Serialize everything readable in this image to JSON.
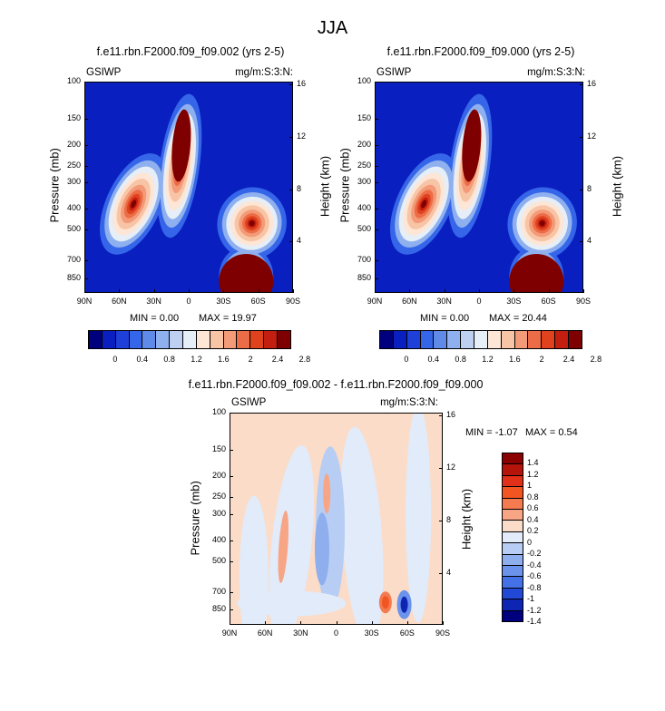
{
  "figure_title": "JJA",
  "chart_data": [
    {
      "type": "heatmap",
      "title": "f.e11.rbn.F2000.f09_f09.002 (yrs 2-5)",
      "left_label": "GSIWP",
      "right_label": "mg/m:S:3:N:",
      "xlabel": "",
      "ylabel": "Pressure (mb)",
      "ylabel_right": "Height (km)",
      "x_ticks": [
        "90N",
        "60N",
        "30N",
        "0",
        "30S",
        "60S",
        "90S"
      ],
      "y_ticks": [
        "100",
        "150",
        "200",
        "250",
        "300",
        "400",
        "500",
        "700",
        "850"
      ],
      "y_right_ticks": [
        "16",
        "12",
        "8",
        "4"
      ],
      "min": 0.0,
      "max": 19.97,
      "min_text": "MIN =  0.00",
      "max_text": "MAX = 19.97",
      "colorbar_ticks": [
        "0",
        "0.4",
        "0.8",
        "1.2",
        "1.6",
        "2",
        "2.4",
        "2.8"
      ],
      "features": [
        {
          "lat": 48,
          "p": 380,
          "value": 3.0
        },
        {
          "lat": 8,
          "p": 250,
          "value": 3.2
        },
        {
          "lat": -50,
          "p": 780,
          "value": 3.2
        },
        {
          "lat": -55,
          "p": 470,
          "value": 2.4
        }
      ]
    },
    {
      "type": "heatmap",
      "title": "f.e11.rbn.F2000.f09_f09.000 (yrs 2-5)",
      "left_label": "GSIWP",
      "right_label": "mg/m:S:3:N:",
      "xlabel": "",
      "ylabel": "Pressure (mb)",
      "ylabel_right": "Height (km)",
      "x_ticks": [
        "90N",
        "60N",
        "30N",
        "0",
        "30S",
        "60S",
        "90S"
      ],
      "y_ticks": [
        "100",
        "150",
        "200",
        "250",
        "300",
        "400",
        "500",
        "700",
        "850"
      ],
      "y_right_ticks": [
        "16",
        "12",
        "8",
        "4"
      ],
      "min": 0.0,
      "max": 20.44,
      "min_text": "MIN =  0.00",
      "max_text": "MAX = 20.44",
      "colorbar_ticks": [
        "0",
        "0.4",
        "0.8",
        "1.2",
        "1.6",
        "2",
        "2.4",
        "2.8"
      ],
      "features": [
        {
          "lat": 48,
          "p": 380,
          "value": 3.0
        },
        {
          "lat": 8,
          "p": 250,
          "value": 3.2
        },
        {
          "lat": -50,
          "p": 780,
          "value": 3.2
        },
        {
          "lat": -55,
          "p": 470,
          "value": 2.4
        }
      ]
    },
    {
      "type": "heatmap",
      "title": "f.e11.rbn.F2000.f09_f09.002 - f.e11.rbn.F2000.f09_f09.000",
      "left_label": "GSIWP",
      "right_label": "mg/m:S:3:N:",
      "xlabel": "",
      "ylabel": "Pressure (mb)",
      "ylabel_right": "Height (km)",
      "x_ticks": [
        "90N",
        "60N",
        "30N",
        "0",
        "30S",
        "60S",
        "90S"
      ],
      "y_ticks": [
        "100",
        "150",
        "200",
        "250",
        "300",
        "400",
        "500",
        "700",
        "850"
      ],
      "y_right_ticks": [
        "16",
        "12",
        "8",
        "4"
      ],
      "min": -1.07,
      "max": 0.54,
      "min_text": "MIN = -1.07",
      "max_text": "MAX =  0.54",
      "colorbar_ticks": [
        "1.4",
        "1.2",
        "1",
        "0.8",
        "0.6",
        "0.4",
        "0.2",
        "0",
        "-0.2",
        "-0.4",
        "-0.6",
        "-0.8",
        "-1",
        "-1.2",
        "-1.4"
      ],
      "features": [
        {
          "lat": -42,
          "p": 790,
          "value": 0.5
        },
        {
          "lat": -58,
          "p": 810,
          "value": -1.07
        },
        {
          "lat": 45,
          "p": 400,
          "value": 0.3
        },
        {
          "lat": 8,
          "p": 230,
          "value": 0.3
        },
        {
          "lat": 10,
          "p": 430,
          "value": -0.4
        }
      ]
    }
  ],
  "colors": {
    "seq_colorbar": [
      "#00007f",
      "#0a1fbf",
      "#1e40d8",
      "#3565e8",
      "#5f8ae8",
      "#8fb0ee",
      "#bdd0f2",
      "#e6eef8",
      "#fde6d6",
      "#f8c4a6",
      "#f39b78",
      "#ec6c47",
      "#e0421e",
      "#c31e10",
      "#7f0000"
    ],
    "diff_colorbar": [
      "#8b0000",
      "#b5140a",
      "#e0301a",
      "#f25522",
      "#f47a50",
      "#f7a585",
      "#fbdcc8",
      "#e1ebfa",
      "#b7cdf3",
      "#8eaeee",
      "#6b93ec",
      "#4471e6",
      "#2248d6",
      "#0e25b3",
      "#00007f"
    ]
  }
}
